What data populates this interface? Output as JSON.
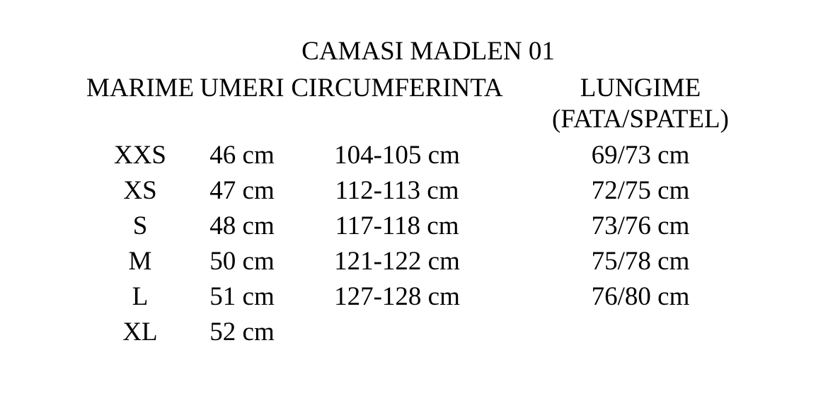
{
  "title": "CAMASI MADLEN 01",
  "table": {
    "headers": [
      {
        "label": "MARIME",
        "sub": ""
      },
      {
        "label": "UMERI",
        "sub": ""
      },
      {
        "label": "CIRCUMFERINTA",
        "sub": ""
      },
      {
        "label": "LUNGIME",
        "sub": "(FATA/SPATEL)"
      }
    ],
    "rows": [
      [
        "XXS",
        "46 cm",
        "104-105 cm",
        "69/73 cm"
      ],
      [
        "XS",
        "47 cm",
        "112-113 cm",
        "72/75 cm"
      ],
      [
        "S",
        "48 cm",
        "117-118 cm",
        "73/76 cm"
      ],
      [
        "M",
        "50 cm",
        "121-122 cm",
        "75/78 cm"
      ],
      [
        "L",
        "51 cm",
        "127-128 cm",
        "76/80 cm"
      ],
      [
        "XL",
        "52 cm",
        "",
        ""
      ]
    ]
  },
  "colors": {
    "text": "#000000",
    "background": "#ffffff"
  }
}
